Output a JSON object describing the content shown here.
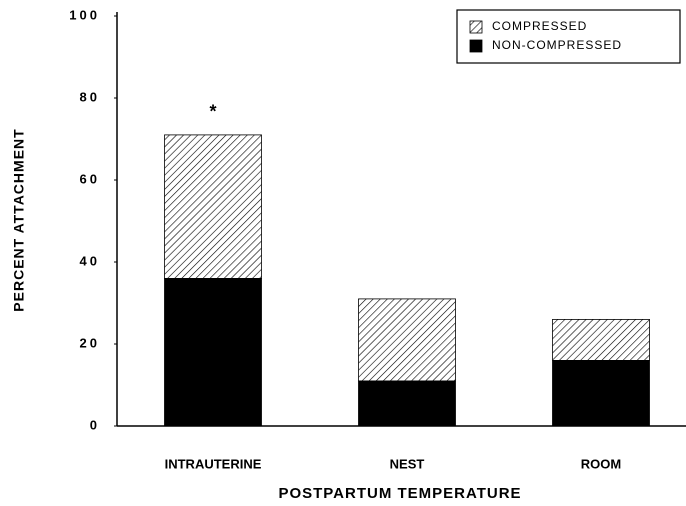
{
  "chart_data": {
    "type": "stacked-bar",
    "categories": [
      "INTRAUTERINE",
      "NEST",
      "ROOM"
    ],
    "series": [
      {
        "name": "COMPRESSED",
        "color": "hatch",
        "values": [
          35,
          20,
          10
        ]
      },
      {
        "name": "NON-COMPRESSED",
        "color": "#000000",
        "values": [
          36,
          11,
          16
        ]
      }
    ],
    "xlabel": "POSTPARTUM TEMPERATURE",
    "ylabel": "PERCENT ATTACHMENT",
    "annotation": "*",
    "ylim": [
      0,
      100
    ],
    "yticks": [
      0,
      20,
      40,
      60,
      80,
      100
    ],
    "legend": "upper right"
  }
}
